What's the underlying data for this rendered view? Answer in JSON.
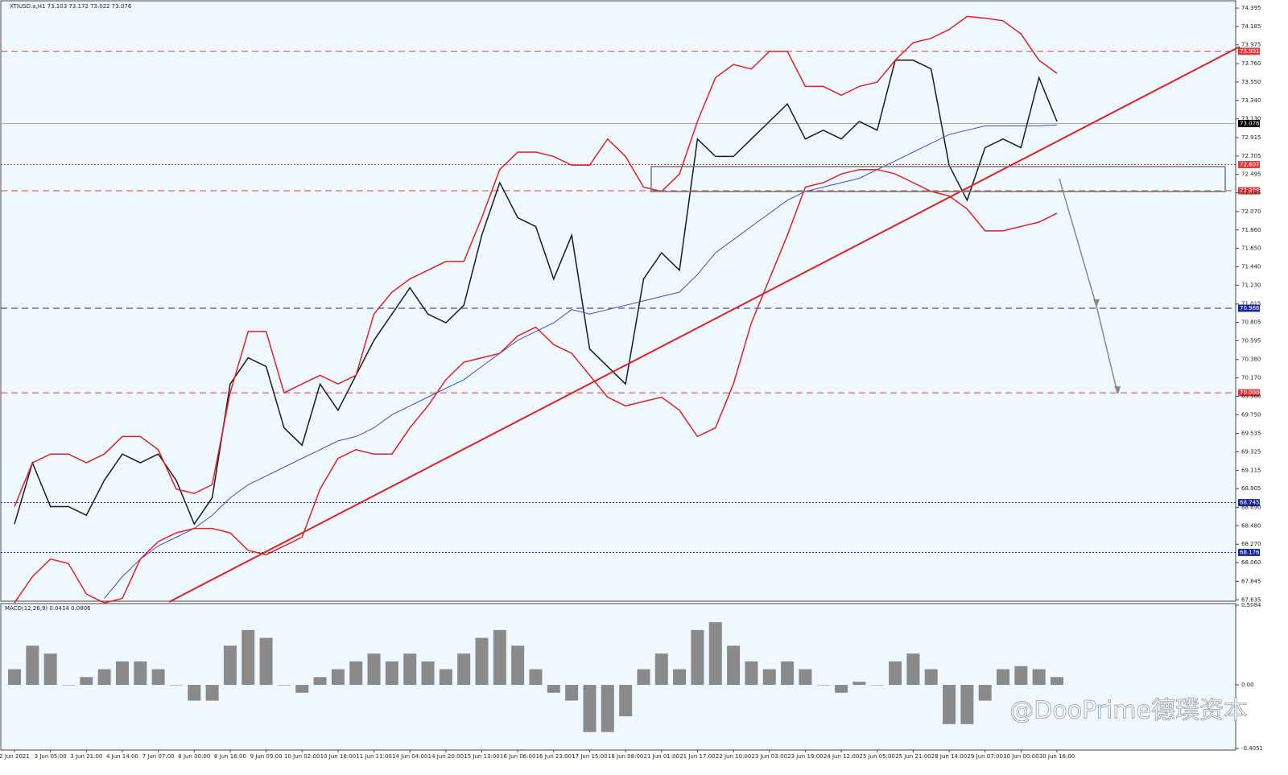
{
  "chart_data": [
    {
      "type": "line",
      "title": "XTIUSD.a,H1  73.103 73.172 73.022 73.076",
      "categories": [
        "2 Jun 2021",
        null,
        "3 Jun 05:00",
        null,
        "3 Jun 21:00",
        null,
        "4 Jun 14:00",
        null,
        "7 Jun 07:00",
        null,
        "8 Jun 00:00",
        null,
        "8 Jun 16:00",
        null,
        "9 Jun 09:00",
        null,
        "10 Jun 02:00",
        null,
        "10 Jun 18:00",
        null,
        "11 Jun 11:00",
        null,
        "14 Jun 04:00",
        null,
        "14 Jun 20:00",
        null,
        "15 Jun 13:00",
        null,
        "16 Jun 06:00",
        null,
        "16 Jun 23:00",
        null,
        "17 Jun 15:00",
        null,
        "18 Jun 08:00",
        null,
        "21 Jun 01:00",
        null,
        "21 Jun 17:00",
        null,
        "22 Jun 10:00",
        null,
        "23 Jun 03:00",
        null,
        "23 Jun 19:00",
        null,
        "24 Jun 12:00",
        null,
        "25 Jun 05:00",
        null,
        "25 Jun 21:00",
        null,
        "28 Jun 14:00",
        null,
        "29 Jun 07:00",
        null,
        "30 Jun 00:00",
        null,
        "30 Jun 16:00"
      ],
      "series": [
        {
          "color": "#1a1a1a",
          "values": [
            68.5,
            69.2,
            68.7,
            68.7,
            68.6,
            69.0,
            69.3,
            69.2,
            69.3,
            69.0,
            68.5,
            68.8,
            70.1,
            70.4,
            70.3,
            69.6,
            69.4,
            70.1,
            69.8,
            70.2,
            70.6,
            70.9,
            71.2,
            70.9,
            70.8,
            71.0,
            71.8,
            72.4,
            72.0,
            71.9,
            71.3,
            71.8,
            70.5,
            70.3,
            70.1,
            71.3,
            71.6,
            71.4,
            72.9,
            72.7,
            72.7,
            72.9,
            73.1,
            73.3,
            72.9,
            73.0,
            72.9,
            73.1,
            73.0,
            73.8,
            73.8,
            73.7,
            72.6,
            72.2,
            72.8,
            72.9,
            72.8,
            73.6,
            73.1
          ]
        },
        {
          "color": "#3a4fb0",
          "values": [
            null,
            null,
            null,
            null,
            null,
            67.65,
            67.9,
            68.1,
            68.25,
            68.35,
            68.45,
            68.6,
            68.8,
            68.95,
            69.05,
            69.15,
            69.25,
            69.35,
            69.45,
            69.5,
            69.6,
            69.75,
            69.85,
            69.95,
            70.05,
            70.15,
            70.3,
            70.45,
            70.6,
            70.7,
            70.8,
            70.95,
            70.9,
            70.95,
            71.0,
            71.05,
            71.1,
            71.15,
            71.35,
            71.6,
            71.75,
            71.9,
            72.05,
            72.2,
            72.3,
            72.35,
            72.4,
            72.45,
            72.55,
            72.65,
            72.75,
            72.85,
            72.95,
            73.0,
            73.05,
            73.05,
            73.05,
            73.05,
            73.06
          ]
        },
        {
          "color": "#e02020",
          "values": [
            68.7,
            69.2,
            69.3,
            69.3,
            69.2,
            69.3,
            69.5,
            69.5,
            69.35,
            68.9,
            68.85,
            68.95,
            70.0,
            70.7,
            70.7,
            70.0,
            70.1,
            70.2,
            70.1,
            70.2,
            70.9,
            71.15,
            71.3,
            71.4,
            71.5,
            71.5,
            72.0,
            72.55,
            72.75,
            72.75,
            72.7,
            72.6,
            72.6,
            72.9,
            72.7,
            72.35,
            72.3,
            72.5,
            73.1,
            73.6,
            73.75,
            73.7,
            73.9,
            73.9,
            73.5,
            73.5,
            73.4,
            73.5,
            73.55,
            73.8,
            74.0,
            74.05,
            74.15,
            74.3,
            74.28,
            74.25,
            74.1,
            73.8,
            73.65
          ]
        },
        {
          "color": "#e02020",
          "values": [
            67.6,
            67.9,
            68.1,
            68.05,
            67.7,
            67.6,
            67.65,
            68.1,
            68.3,
            68.4,
            68.45,
            68.45,
            68.4,
            68.2,
            68.15,
            68.25,
            68.35,
            68.9,
            69.25,
            69.35,
            69.3,
            69.3,
            69.6,
            69.85,
            70.15,
            70.35,
            70.4,
            70.45,
            70.65,
            70.75,
            70.55,
            70.45,
            70.2,
            69.95,
            69.85,
            69.9,
            69.95,
            69.8,
            69.5,
            69.6,
            70.1,
            70.8,
            71.3,
            71.8,
            72.35,
            72.4,
            72.5,
            72.55,
            72.55,
            72.5,
            72.4,
            72.3,
            72.25,
            72.1,
            71.85,
            71.85,
            71.9,
            71.95,
            72.05
          ]
        }
      ],
      "ylim": [
        67.61,
        74.46
      ],
      "yticks": [
        74.395,
        74.185,
        73.975,
        {
          "value": 73.76,
          "label": "73.760"
        },
        {
          "value": 73.55,
          "label": "73.550"
        },
        {
          "value": 73.34,
          "label": "73.340"
        },
        {
          "value": 73.13,
          "label": "73.130"
        },
        72.915,
        72.705,
        72.495,
        72.285,
        {
          "value": 72.07,
          "label": "72.070"
        },
        {
          "value": 71.86,
          "label": "71.860"
        },
        {
          "value": 71.65,
          "label": "71.650"
        },
        {
          "value": 71.44,
          "label": "71.440"
        },
        {
          "value": 71.23,
          "label": "71.230"
        },
        71.015,
        70.805,
        70.595,
        {
          "value": 70.38,
          "label": "70.380"
        },
        {
          "value": 70.17,
          "label": "70.170"
        },
        {
          "value": 69.96,
          "label": "69.960"
        },
        {
          "value": 69.75,
          "label": "69.750"
        },
        69.535,
        69.325,
        69.115,
        68.905,
        {
          "value": 68.69,
          "label": "68.690"
        },
        {
          "value": 68.48,
          "label": "68.480"
        },
        {
          "value": 68.27,
          "label": "68.270"
        },
        {
          "value": 68.06,
          "label": "68.060"
        },
        67.845,
        67.635
      ],
      "levels": [
        {
          "value": 73.901,
          "color": "#e03c3c",
          "dash": "8 5"
        },
        {
          "value": 73.076,
          "color": "#000000",
          "dash": "0"
        },
        {
          "value": 72.607,
          "color": "#e03c3c",
          "dash": "2 2"
        },
        {
          "value": 72.308,
          "color": "#e03c3c",
          "dash": "8 5"
        },
        {
          "value": 70.966,
          "color": "#1a2a9c",
          "dash": "8 5"
        },
        {
          "value": 70,
          "label": "70.000",
          "color": "#e03c3c",
          "dash": "8 5"
        },
        {
          "value": 68.745,
          "color": "#1a2a9c",
          "dash": "2 2"
        },
        {
          "value": 68.176,
          "color": "#1a2a9c",
          "dash": "2 2"
        }
      ],
      "watermark": "@DooPrime德璞资本"
    },
    {
      "type": "bar",
      "title": "MACD(12,26,9) 0.0414 0.0806",
      "color": "#8a8a8a",
      "values": [
        0.1,
        0.25,
        0.2,
        0.0,
        0.05,
        0.1,
        0.15,
        0.15,
        0.1,
        0.0,
        -0.1,
        -0.1,
        0.25,
        0.35,
        0.3,
        0.0,
        -0.05,
        0.05,
        0.1,
        0.15,
        0.2,
        0.15,
        0.2,
        0.15,
        0.1,
        0.2,
        0.3,
        0.35,
        0.25,
        0.1,
        -0.05,
        -0.1,
        -0.3,
        -0.3,
        -0.2,
        0.1,
        0.2,
        0.1,
        0.35,
        0.4,
        0.25,
        0.15,
        0.1,
        0.15,
        0.1,
        0.0,
        -0.05,
        0.02,
        0.0,
        0.15,
        0.2,
        0.1,
        -0.25,
        -0.25,
        -0.1,
        0.1,
        0.12,
        0.1,
        0.05
      ],
      "ylim": [
        -0.4051,
        0.5084
      ],
      "yticks": [
        0.5084,
        {
          "value": 0,
          "label": "0.00"
        },
        -0.4051
      ]
    }
  ]
}
